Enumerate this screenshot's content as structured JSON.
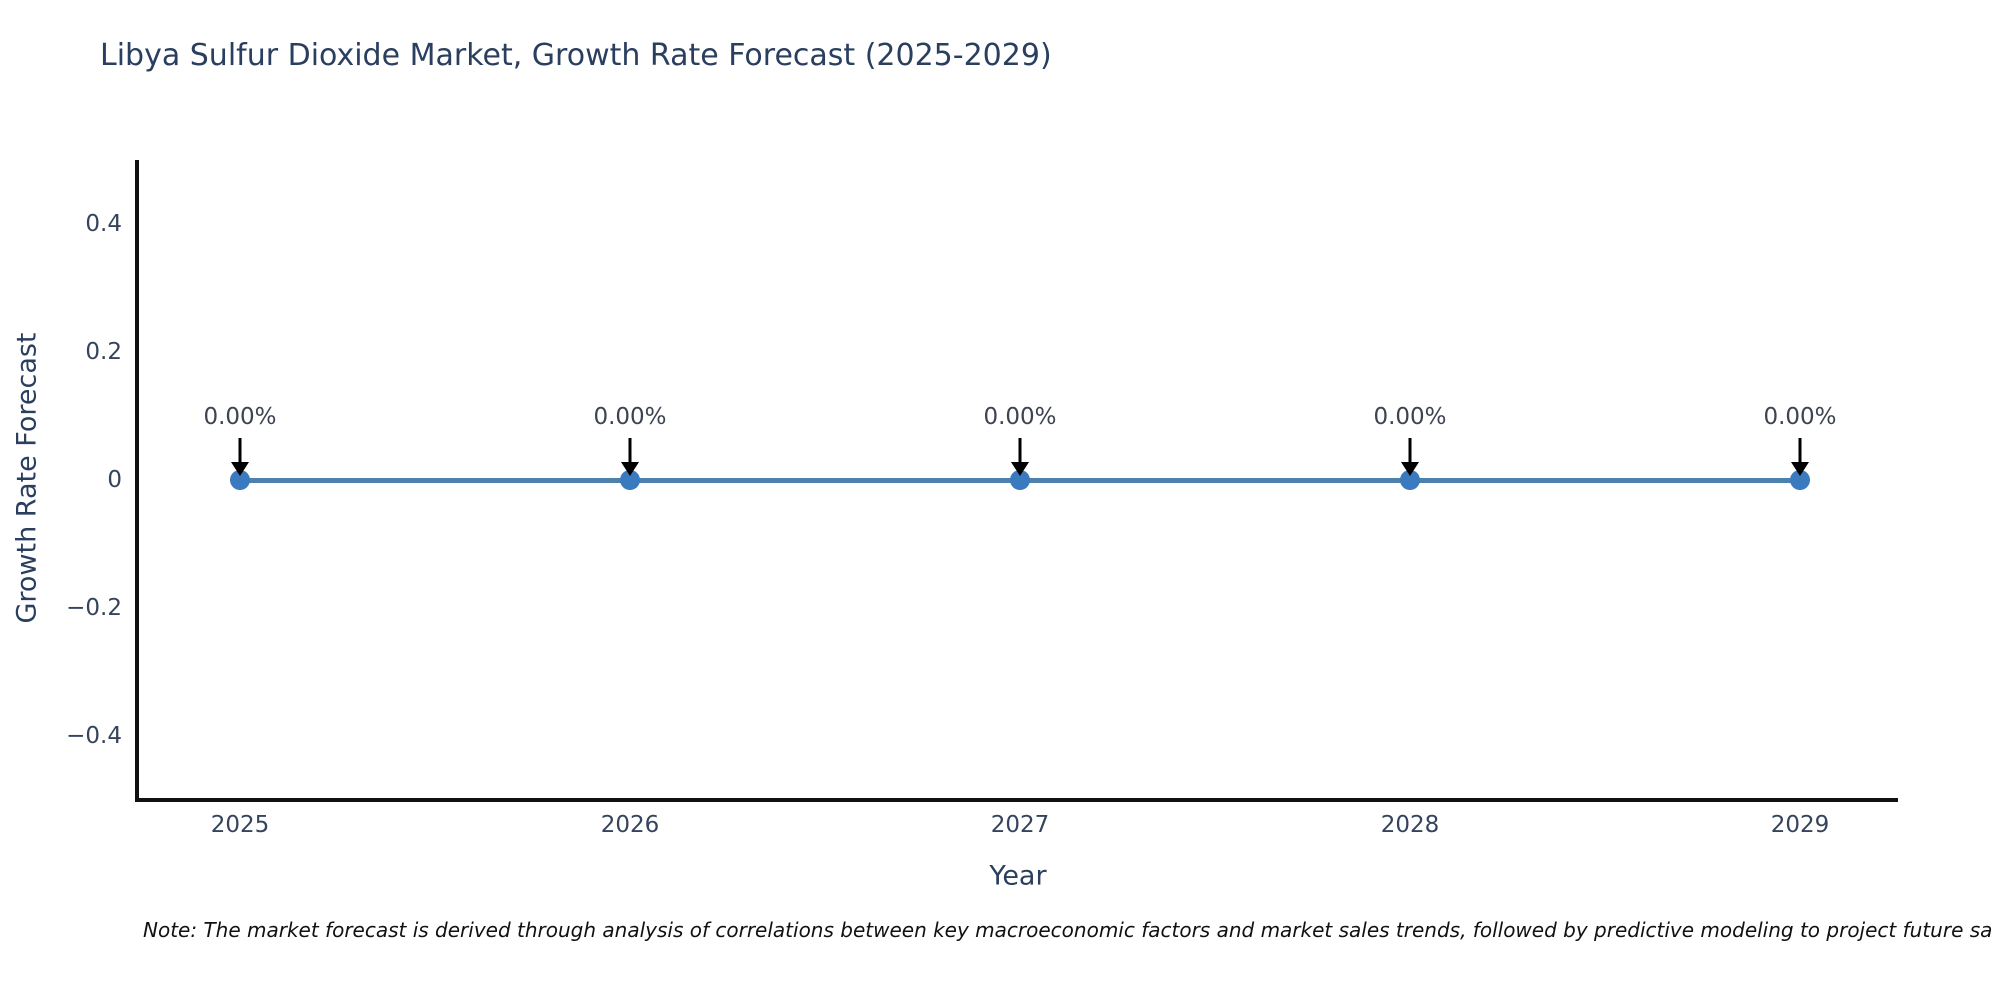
{
  "title": "Libya Sulfur Dioxide Market, Growth Rate Forecast (2025-2029)",
  "note": "Note: The market forecast is derived through analysis of correlations between key macroeconomic factors and market sales trends, followed by predictive modeling to project future sa",
  "chart_data": {
    "type": "line",
    "title": "Libya Sulfur Dioxide Market, Growth Rate Forecast (2025-2029)",
    "xlabel": "Year",
    "ylabel": "Growth Rate Forecast",
    "x": [
      2025,
      2026,
      2027,
      2028,
      2029
    ],
    "values": [
      0,
      0,
      0,
      0,
      0
    ],
    "point_labels": [
      "0.00%",
      "0.00%",
      "0.00%",
      "0.00%",
      "0.00%"
    ],
    "xtick_labels": [
      "2025",
      "2026",
      "2027",
      "2028",
      "2029"
    ],
    "ytick_values": [
      0.4,
      0.2,
      0,
      -0.2,
      -0.4
    ],
    "ytick_labels": [
      "0.4",
      "0.2",
      "0",
      "−0.2",
      "−0.4"
    ],
    "ylim": [
      -0.5,
      0.5
    ],
    "grid": false,
    "legend_position": "none",
    "line_color": "#4e81ac",
    "marker_color": "#3a7abf",
    "arrow_color": "#000000"
  }
}
